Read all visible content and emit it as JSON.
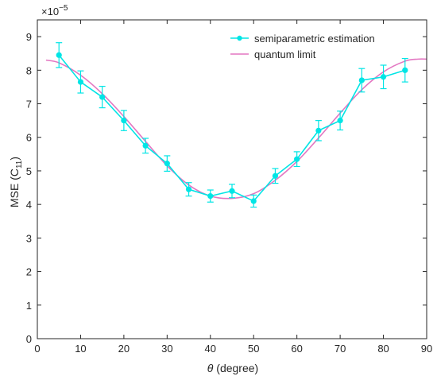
{
  "chart_data": {
    "type": "line",
    "xlabel": "θ (degree)",
    "xlabel_symbol": "θ",
    "xlabel_rest": " (degree)",
    "ylabel": "MSE (C11)",
    "ylabel_main": "MSE (C",
    "ylabel_sub": "11",
    "ylabel_close": ")",
    "y_exponent_base": "×10",
    "y_exponent_power": "−5",
    "xlim": [
      0,
      90
    ],
    "ylim": [
      0,
      9.5
    ],
    "xticks": [
      0,
      10,
      20,
      30,
      40,
      50,
      60,
      70,
      80,
      90
    ],
    "yticks": [
      0,
      1,
      2,
      3,
      4,
      5,
      6,
      7,
      8,
      9
    ],
    "grid": false,
    "legend_position": "top-right",
    "series": [
      {
        "name": "semiparametric estimation",
        "color": "#00e5e5",
        "style": "line-marker-errorbar",
        "x": [
          5,
          10,
          15,
          20,
          25,
          30,
          35,
          40,
          45,
          50,
          55,
          60,
          65,
          70,
          75,
          80,
          85
        ],
        "y": [
          8.45,
          7.65,
          7.2,
          6.5,
          5.75,
          5.22,
          4.45,
          4.25,
          4.4,
          4.1,
          4.85,
          5.35,
          6.2,
          6.5,
          7.7,
          7.8,
          8.0
        ],
        "err": [
          0.37,
          0.33,
          0.32,
          0.3,
          0.22,
          0.23,
          0.2,
          0.18,
          0.2,
          0.18,
          0.22,
          0.22,
          0.3,
          0.28,
          0.35,
          0.35,
          0.35
        ]
      },
      {
        "name": "quantum limit",
        "color": "#e377c2",
        "style": "line",
        "x": [
          2,
          5,
          10,
          15,
          20,
          25,
          30,
          35,
          40,
          45,
          50,
          55,
          60,
          65,
          70,
          75,
          80,
          85,
          88,
          90
        ],
        "y": [
          8.3,
          8.22,
          7.85,
          7.3,
          6.62,
          5.88,
          5.15,
          4.58,
          4.25,
          4.18,
          4.32,
          4.72,
          5.28,
          5.98,
          6.72,
          7.42,
          7.95,
          8.27,
          8.33,
          8.33
        ]
      }
    ]
  }
}
